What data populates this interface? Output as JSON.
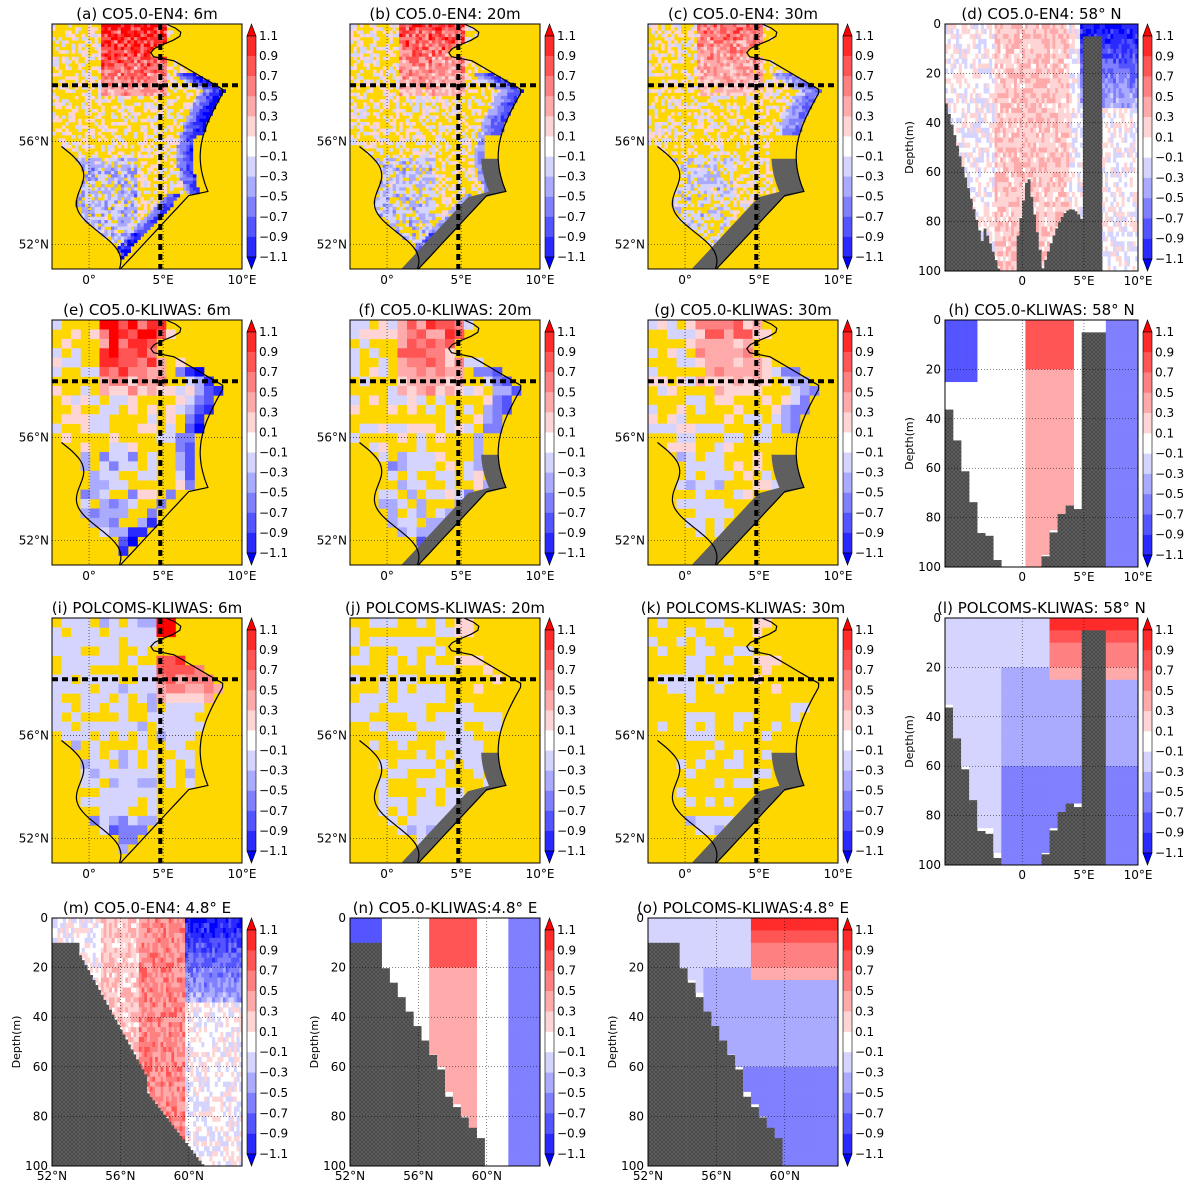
{
  "colors": {
    "land": "#ffd700",
    "mask": "#5f5f5f",
    "coast": "#000000",
    "scale": [
      "#0000ff",
      "#2a2aff",
      "#5555ff",
      "#8080ff",
      "#aaaaff",
      "#d4d4ff",
      "#ffffff",
      "#ffd4d4",
      "#ffaaaa",
      "#ff8080",
      "#ff5555",
      "#ff2a2a",
      "#ff0000"
    ]
  },
  "colorbar": {
    "ticks": [
      "1.1",
      "0.9",
      "0.7",
      "0.5",
      "0.3",
      "0.1",
      "−0.1",
      "−0.3",
      "−0.5",
      "−0.7",
      "−0.9",
      "−1.1"
    ],
    "levels": [
      -1.1,
      -0.9,
      -0.7,
      -0.5,
      -0.3,
      -0.1,
      0.1,
      0.3,
      0.5,
      0.7,
      0.9,
      1.1
    ]
  },
  "chart_data": [
    {
      "id": "a",
      "type": "heatmap",
      "title": "(a) CO5.0-EN4: 6m",
      "kind": "map",
      "field": "ostia_like",
      "strength": 1.2,
      "res": "fine",
      "depth": 6,
      "xticks": [
        "0°",
        "5°E",
        "10°E"
      ],
      "yticks": [
        "56°N",
        "52°N"
      ]
    },
    {
      "id": "b",
      "type": "heatmap",
      "title": "(b) CO5.0-EN4: 20m",
      "kind": "map",
      "field": "ostia_like",
      "strength": 0.9,
      "res": "fine",
      "depth": 20,
      "xticks": [
        "0°",
        "5°E",
        "10°E"
      ],
      "yticks": [
        "56°N",
        "52°N"
      ]
    },
    {
      "id": "c",
      "type": "heatmap",
      "title": "(c) CO5.0-EN4: 30m",
      "kind": "map",
      "field": "ostia_like",
      "strength": 0.7,
      "res": "fine",
      "depth": 30,
      "xticks": [
        "0°",
        "5°E",
        "10°E"
      ],
      "yticks": [
        "56°N",
        "52°N"
      ]
    },
    {
      "id": "d",
      "type": "heatmap",
      "title": "(d) CO5.0-EN4: 58° N",
      "kind": "section",
      "field": "sec_a",
      "res": "fine",
      "ylabel": "Depth(m)",
      "xticks": [
        "0",
        "5°E",
        "10°E"
      ],
      "yticks": [
        "0",
        "20",
        "40",
        "60",
        "80",
        "100"
      ]
    },
    {
      "id": "e",
      "type": "heatmap",
      "title": "(e) CO5.0-KLIWAS: 6m",
      "kind": "map",
      "field": "kliwas",
      "strength": 1.1,
      "res": "coarse",
      "depth": 6,
      "xticks": [
        "0°",
        "5°E",
        "10°E"
      ],
      "yticks": [
        "56°N",
        "52°N"
      ]
    },
    {
      "id": "f",
      "type": "heatmap",
      "title": "(f) CO5.0-KLIWAS: 20m",
      "kind": "map",
      "field": "kliwas",
      "strength": 0.8,
      "res": "coarse",
      "depth": 20,
      "xticks": [
        "0°",
        "5°E",
        "10°E"
      ],
      "yticks": [
        "56°N",
        "52°N"
      ]
    },
    {
      "id": "g",
      "type": "heatmap",
      "title": "(g) CO5.0-KLIWAS: 30m",
      "kind": "map",
      "field": "kliwas",
      "strength": 0.6,
      "res": "coarse",
      "depth": 30,
      "xticks": [
        "0°",
        "5°E",
        "10°E"
      ],
      "yticks": [
        "56°N",
        "52°N"
      ]
    },
    {
      "id": "h",
      "type": "heatmap",
      "title": "(h) CO5.0-KLIWAS: 58° N",
      "kind": "section",
      "field": "sec_b",
      "res": "coarse",
      "ylabel": "Depth(m)",
      "xticks": [
        "0",
        "5°E",
        "10°E"
      ],
      "yticks": [
        "0",
        "20",
        "40",
        "60",
        "80",
        "100"
      ]
    },
    {
      "id": "i",
      "type": "heatmap",
      "title": "(i) POLCOMS-KLIWAS: 6m",
      "kind": "map",
      "field": "polcoms",
      "strength": 1.3,
      "res": "coarse",
      "depth": 6,
      "xticks": [
        "0°",
        "5°E",
        "10°E"
      ],
      "yticks": [
        "56°N",
        "52°N"
      ]
    },
    {
      "id": "j",
      "type": "heatmap",
      "title": "(j) POLCOMS-KLIWAS: 20m",
      "kind": "map",
      "field": "polcoms2",
      "strength": 0.8,
      "res": "coarse",
      "depth": 20,
      "xticks": [
        "0°",
        "5°E",
        "10°E"
      ],
      "yticks": [
        "56°N",
        "52°N"
      ]
    },
    {
      "id": "k",
      "type": "heatmap",
      "title": "(k) POLCOMS-KLIWAS: 30m",
      "kind": "map",
      "field": "polcoms3",
      "strength": 0.6,
      "res": "coarse",
      "depth": 30,
      "xticks": [
        "0°",
        "5°E",
        "10°E"
      ],
      "yticks": [
        "56°N",
        "52°N"
      ]
    },
    {
      "id": "l",
      "type": "heatmap",
      "title": "(l) POLCOMS-KLIWAS: 58° N",
      "kind": "section",
      "field": "sec_c",
      "res": "coarse",
      "ylabel": "Depth(m)",
      "xticks": [
        "0",
        "5°E",
        "10°E"
      ],
      "yticks": [
        "0",
        "20",
        "40",
        "60",
        "80",
        "100"
      ]
    },
    {
      "id": "m",
      "type": "heatmap",
      "title": "(m) CO5.0-EN4: 4.8° E",
      "kind": "msection",
      "field": "msec_a",
      "res": "fine",
      "ylabel": "Depth(m)",
      "xticks": [
        "52°N",
        "56°N",
        "60°N"
      ],
      "yticks": [
        "0",
        "20",
        "40",
        "60",
        "80",
        "100"
      ]
    },
    {
      "id": "n",
      "type": "heatmap",
      "title": "(n) CO5.0-KLIWAS:4.8° E",
      "kind": "msection",
      "field": "msec_b",
      "res": "coarse",
      "ylabel": "Depth(m)",
      "xticks": [
        "52°N",
        "56°N",
        "60°N"
      ],
      "yticks": [
        "0",
        "20",
        "40",
        "60",
        "80",
        "100"
      ]
    },
    {
      "id": "o",
      "type": "heatmap",
      "title": "(o) POLCOMS-KLIWAS:4.8° E",
      "kind": "msection",
      "field": "msec_c",
      "res": "coarse",
      "ylabel": "Depth(m)",
      "xticks": [
        "52°N",
        "56°N",
        "60°N"
      ],
      "yticks": [
        "0",
        "20",
        "40",
        "60",
        "80",
        "100"
      ]
    }
  ]
}
